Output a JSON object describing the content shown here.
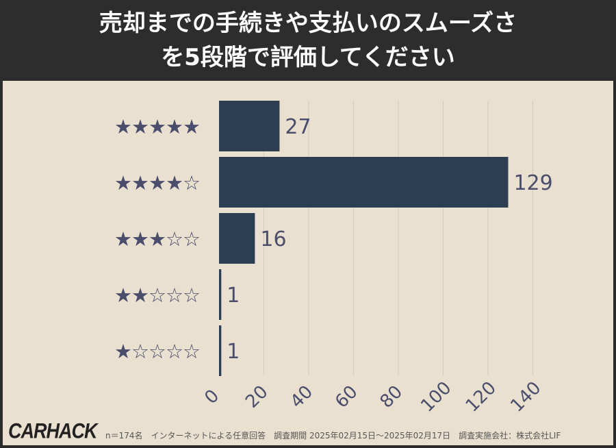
{
  "title_lines": [
    "売却までの手続きや支払いのスムーズさ",
    "を5段階で評価してください"
  ],
  "logo": "CARHACK",
  "footnote": "n＝174名　インターネットによる任意回答　調査期間 2025年02月15日～2025年02月17日　調査実施会社：株式会社LIF",
  "colors": {
    "bar": "#2c3e52",
    "star": "#4a4e6c",
    "text": "#4a4e6c",
    "grid": "#d3cabb"
  },
  "chart_data": {
    "type": "bar",
    "orientation": "horizontal",
    "categories": [
      "★★★★★",
      "★★★★☆",
      "★★★☆☆",
      "★★☆☆☆",
      "★☆☆☆☆"
    ],
    "values": [
      27,
      129,
      16,
      1,
      1
    ],
    "xlim": [
      0,
      140
    ],
    "xticks": [
      0,
      20,
      40,
      60,
      80,
      100,
      120,
      140
    ],
    "grid": true
  }
}
